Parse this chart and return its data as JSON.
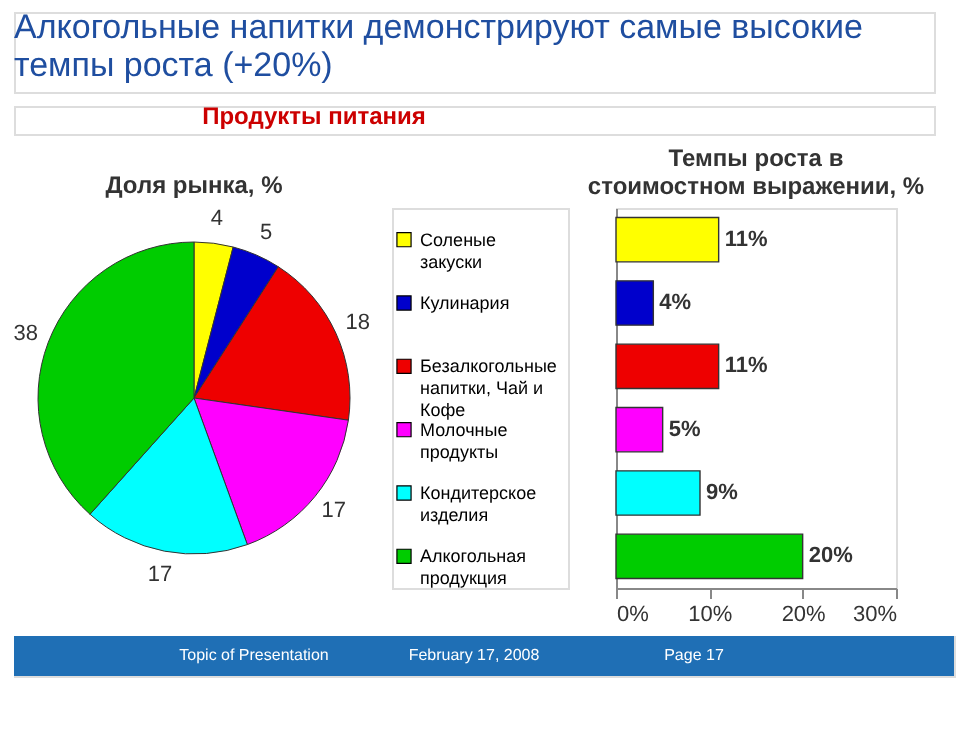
{
  "chart_data": [
    {
      "type": "pie",
      "title": "Алкогольные напитки демонстрируют самые высокие темпы роста (+20%)",
      "subtitle": "Продукты питания",
      "annotations": [
        "Доля рынка, %",
        "Topic of Presentation",
        "February 17, 2008",
        "Page 17"
      ],
      "categories": [
        "Соленые закуски",
        "Кулинария",
        "Безалкогольные напитки, Чай и Кофе",
        "Молочные продукты",
        "Кондитерское изделия",
        "Алкогольная продукция"
      ],
      "values": [
        4,
        5,
        18,
        17,
        17,
        38
      ],
      "colors": [
        "#ffff00",
        "#0000cc",
        "#ee0000",
        "#ff00ff",
        "#00ffff",
        "#00cc00"
      ],
      "data_labels": true,
      "legend": "right"
    },
    {
      "type": "bar",
      "orientation": "horizontal",
      "title": "Темпы роста в стоимостном выражении, %",
      "categories": [
        null,
        null,
        null,
        null,
        null,
        null
      ],
      "values": [
        11,
        4,
        11,
        5,
        9,
        20
      ],
      "colors": [
        "#ffff00",
        "#0000cc",
        "#ee0000",
        "#ff00ff",
        "#00ffff",
        "#00cc00"
      ],
      "value_labels": [
        "11%",
        "4%",
        "11%",
        "5%",
        "9%",
        "20%"
      ],
      "xlim": [
        0,
        30
      ],
      "xticks": [
        {
          "value": 0,
          "label": "0%"
        },
        {
          "value": 10,
          "label": "10%"
        },
        {
          "value": 20,
          "label": "20%"
        },
        {
          "value": 30,
          "label": "30%"
        }
      ],
      "tick_labels": "x",
      "grid": false
    }
  ]
}
